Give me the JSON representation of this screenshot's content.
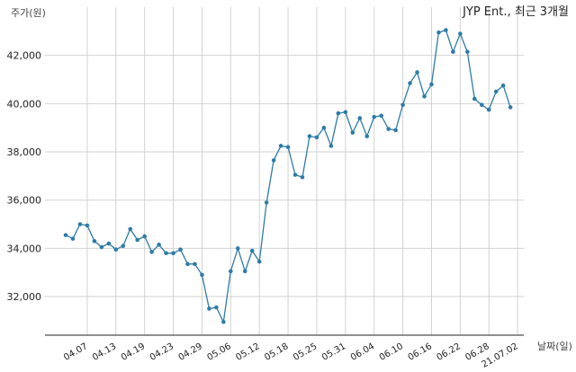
{
  "chart_data": {
    "type": "line",
    "title": "JYP Ent., 최근 3개월",
    "ylabel": "주가(원)",
    "xlabel": "날짜(일)",
    "ylim": [
      30400,
      44000
    ],
    "yticks": [
      32000,
      34000,
      36000,
      38000,
      40000,
      42000
    ],
    "ytick_labels": [
      "32,000",
      "34,000",
      "36,000",
      "38,000",
      "40,000",
      "42,000"
    ],
    "xticks": [
      {
        "label": "04.07",
        "index": 3
      },
      {
        "label": "04.13",
        "index": 7
      },
      {
        "label": "04.19",
        "index": 11
      },
      {
        "label": "04.23",
        "index": 15
      },
      {
        "label": "04.29",
        "index": 19
      },
      {
        "label": "05.06",
        "index": 23
      },
      {
        "label": "05.12",
        "index": 27
      },
      {
        "label": "05.18",
        "index": 31
      },
      {
        "label": "05.25",
        "index": 35
      },
      {
        "label": "05.31",
        "index": 39
      },
      {
        "label": "06.04",
        "index": 43
      },
      {
        "label": "06.10",
        "index": 47
      },
      {
        "label": "06.16",
        "index": 51
      },
      {
        "label": "06.22",
        "index": 55
      },
      {
        "label": "06.28",
        "index": 59
      },
      {
        "label": "21.07.02",
        "index": 63
      }
    ],
    "grid": true,
    "color": "#2e7ca8",
    "series": [
      {
        "values": [
          34550,
          34400,
          35000,
          34950,
          34300,
          34050,
          34200,
          33950,
          34100,
          34800,
          34350,
          34500,
          33850,
          34150,
          33800,
          33800,
          33950,
          33350,
          33350,
          32900,
          31500,
          31550,
          30950,
          33050,
          34000,
          33050,
          33900,
          33450,
          35900,
          37650,
          38250,
          38200,
          37050,
          36950,
          38650,
          38600,
          39000,
          38250,
          39600,
          39650,
          38800,
          39400,
          38650,
          39450,
          39500,
          38950,
          38900,
          39950,
          40850,
          41300,
          40300,
          40800,
          42950,
          43050,
          42150,
          42900,
          42150,
          40200,
          39950,
          39750,
          40500,
          40750,
          39850
        ]
      }
    ]
  }
}
